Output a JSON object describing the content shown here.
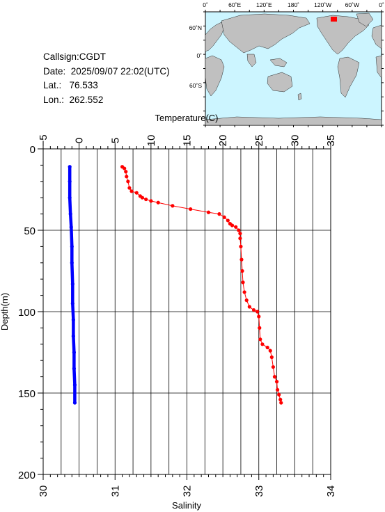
{
  "info": {
    "callsign_line": "Callsign:CGDT",
    "date_line": "Date:  2025/09/07 22:02(UTC)",
    "lat_line": "Lat.:   76.533",
    "lon_line": "Lon.:  262.552"
  },
  "map": {
    "lon_labels": [
      "0˚",
      "60˚E",
      "120˚E",
      "180˚",
      "120˚W",
      "60˚W",
      "0˚"
    ],
    "lat_labels": [
      "60˚N",
      "0˚",
      "60˚S"
    ],
    "ocean_color": "#ccf5ff",
    "land_color": "#c0c0c0",
    "marker_color": "#ff0000"
  },
  "chart_data": [
    {
      "type": "line",
      "name": "temperature-profile",
      "xlabel": "Temperature(C)",
      "ylabel": "Depth(m)",
      "xlim": [
        -5,
        35
      ],
      "ylim": [
        200,
        0
      ],
      "xticks": [
        "−5",
        "0",
        "5",
        "10",
        "15",
        "20",
        "25",
        "30",
        "35"
      ],
      "yticks": [
        "0",
        "50",
        "100",
        "150",
        "200"
      ],
      "grid": true,
      "color": "#ff0000",
      "points": [
        [
          6.0,
          11
        ],
        [
          6.3,
          12
        ],
        [
          6.5,
          14
        ],
        [
          6.6,
          17
        ],
        [
          6.8,
          20
        ],
        [
          7.0,
          24
        ],
        [
          7.3,
          26
        ],
        [
          8.0,
          27
        ],
        [
          8.5,
          29
        ],
        [
          8.8,
          30
        ],
        [
          9.3,
          31
        ],
        [
          10.0,
          32
        ],
        [
          11.0,
          33
        ],
        [
          13.0,
          35
        ],
        [
          15.5,
          37
        ],
        [
          18.0,
          39
        ],
        [
          19.5,
          40
        ],
        [
          20.2,
          42
        ],
        [
          20.7,
          44
        ],
        [
          21.0,
          46
        ],
        [
          21.3,
          47
        ],
        [
          21.8,
          48
        ],
        [
          22.2,
          50
        ],
        [
          22.4,
          52
        ],
        [
          22.4,
          55
        ],
        [
          22.5,
          60
        ],
        [
          22.6,
          68
        ],
        [
          22.7,
          75
        ],
        [
          22.8,
          82
        ],
        [
          23.0,
          88
        ],
        [
          23.3,
          93
        ],
        [
          23.7,
          97
        ],
        [
          24.3,
          99
        ],
        [
          24.8,
          100
        ],
        [
          25.0,
          103
        ],
        [
          25.1,
          110
        ],
        [
          25.2,
          117
        ],
        [
          25.5,
          120
        ],
        [
          26.2,
          122
        ],
        [
          26.6,
          124
        ],
        [
          26.8,
          128
        ],
        [
          27.0,
          134
        ],
        [
          27.2,
          140
        ],
        [
          27.5,
          143
        ],
        [
          27.6,
          148
        ],
        [
          27.8,
          151
        ],
        [
          28.0,
          154
        ],
        [
          28.1,
          156
        ]
      ]
    },
    {
      "type": "line",
      "name": "salinity-profile",
      "xlabel": "Salinity",
      "xlim": [
        30,
        34
      ],
      "xticks": [
        "30",
        "31",
        "32",
        "33",
        "34"
      ],
      "color": "#0000ff",
      "points": [
        [
          30.37,
          11
        ],
        [
          30.37,
          20
        ],
        [
          30.37,
          30
        ],
        [
          30.38,
          40
        ],
        [
          30.39,
          48
        ],
        [
          30.4,
          60
        ],
        [
          30.4,
          70
        ],
        [
          30.41,
          83
        ],
        [
          30.41,
          95
        ],
        [
          30.42,
          105
        ],
        [
          30.42,
          115
        ],
        [
          30.43,
          125
        ],
        [
          30.43,
          135
        ],
        [
          30.44,
          145
        ],
        [
          30.44,
          156
        ]
      ]
    }
  ]
}
